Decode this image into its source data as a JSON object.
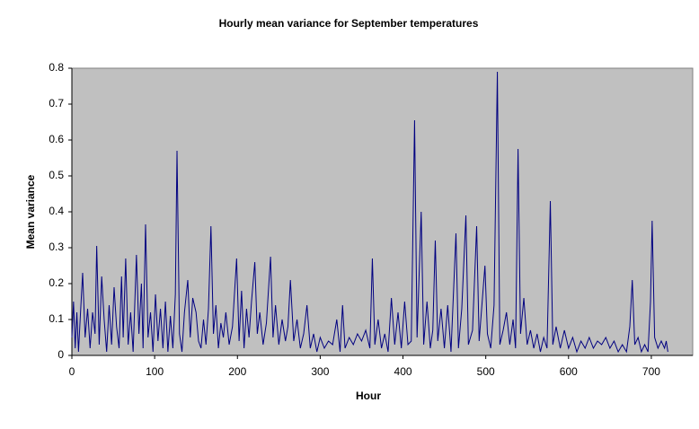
{
  "chart_data": {
    "type": "line",
    "title": "Hourly mean variance for September temperatures",
    "x_label": "Hour",
    "y_label": "Mean variance",
    "xlim": [
      0,
      750
    ],
    "xticks": [
      0,
      100,
      200,
      300,
      400,
      500,
      600,
      700
    ],
    "ylim": [
      0,
      0.8
    ],
    "yticks": [
      0,
      0.1,
      0.2,
      0.3,
      0.4,
      0.5,
      0.6,
      0.7,
      0.8
    ],
    "grid": false,
    "background": "#c0c0c0",
    "series": [
      {
        "name": "Mean variance",
        "color": "#000080",
        "x": [
          0,
          2,
          4,
          6,
          8,
          10,
          13,
          16,
          19,
          22,
          25,
          28,
          30,
          33,
          36,
          39,
          42,
          45,
          48,
          51,
          54,
          57,
          60,
          62,
          65,
          68,
          71,
          74,
          78,
          81,
          84,
          86,
          89,
          92,
          95,
          98,
          101,
          104,
          107,
          110,
          113,
          116,
          119,
          122,
          125,
          127,
          130,
          133,
          136,
          140,
          143,
          146,
          150,
          153,
          156,
          159,
          162,
          165,
          168,
          171,
          174,
          177,
          180,
          183,
          186,
          190,
          194,
          199,
          202,
          205,
          208,
          211,
          214,
          217,
          221,
          224,
          227,
          231,
          235,
          240,
          243,
          246,
          250,
          254,
          258,
          261,
          264,
          268,
          272,
          276,
          280,
          284,
          288,
          292,
          296,
          300,
          305,
          310,
          315,
          320,
          324,
          327,
          330,
          335,
          340,
          345,
          350,
          355,
          360,
          363,
          366,
          370,
          374,
          378,
          382,
          386,
          390,
          394,
          398,
          402,
          406,
          410,
          414,
          417,
          422,
          425,
          429,
          433,
          436,
          439,
          442,
          446,
          450,
          454,
          458,
          464,
          467,
          471,
          476,
          479,
          484,
          489,
          492,
          496,
          499,
          502,
          506,
          510,
          514,
          517,
          521,
          525,
          529,
          533,
          536,
          539,
          542,
          546,
          550,
          554,
          558,
          562,
          566,
          570,
          574,
          578,
          581,
          585,
          590,
          595,
          600,
          605,
          610,
          615,
          620,
          625,
          630,
          635,
          640,
          645,
          650,
          655,
          660,
          665,
          670,
          674,
          677,
          680,
          684,
          688,
          692,
          696,
          699,
          701,
          704,
          708,
          712,
          716,
          718,
          720
        ],
        "values": [
          0.05,
          0.15,
          0.02,
          0.12,
          0.01,
          0.1,
          0.23,
          0.05,
          0.13,
          0.02,
          0.12,
          0.06,
          0.305,
          0.03,
          0.22,
          0.1,
          0.01,
          0.14,
          0.03,
          0.19,
          0.08,
          0.02,
          0.22,
          0.05,
          0.27,
          0.03,
          0.12,
          0.01,
          0.28,
          0.06,
          0.2,
          0.02,
          0.365,
          0.05,
          0.12,
          0.01,
          0.17,
          0.04,
          0.13,
          0.02,
          0.15,
          0.01,
          0.11,
          0.02,
          0.17,
          0.57,
          0.06,
          0.01,
          0.12,
          0.21,
          0.05,
          0.16,
          0.12,
          0.04,
          0.02,
          0.1,
          0.03,
          0.13,
          0.36,
          0.06,
          0.14,
          0.02,
          0.09,
          0.05,
          0.12,
          0.03,
          0.08,
          0.27,
          0.04,
          0.18,
          0.02,
          0.13,
          0.05,
          0.15,
          0.26,
          0.06,
          0.12,
          0.03,
          0.09,
          0.275,
          0.05,
          0.14,
          0.03,
          0.1,
          0.04,
          0.08,
          0.21,
          0.04,
          0.1,
          0.02,
          0.06,
          0.14,
          0.02,
          0.06,
          0.01,
          0.05,
          0.02,
          0.04,
          0.03,
          0.1,
          0.01,
          0.14,
          0.02,
          0.05,
          0.03,
          0.06,
          0.04,
          0.07,
          0.02,
          0.27,
          0.03,
          0.1,
          0.02,
          0.06,
          0.01,
          0.16,
          0.03,
          0.12,
          0.02,
          0.15,
          0.03,
          0.04,
          0.655,
          0.05,
          0.4,
          0.03,
          0.15,
          0.02,
          0.07,
          0.32,
          0.04,
          0.13,
          0.02,
          0.14,
          0.01,
          0.34,
          0.02,
          0.13,
          0.39,
          0.03,
          0.07,
          0.36,
          0.04,
          0.16,
          0.25,
          0.06,
          0.02,
          0.14,
          0.79,
          0.03,
          0.07,
          0.12,
          0.03,
          0.1,
          0.02,
          0.575,
          0.06,
          0.16,
          0.03,
          0.07,
          0.02,
          0.06,
          0.01,
          0.05,
          0.02,
          0.43,
          0.03,
          0.08,
          0.02,
          0.07,
          0.02,
          0.05,
          0.01,
          0.04,
          0.02,
          0.05,
          0.02,
          0.04,
          0.03,
          0.05,
          0.02,
          0.04,
          0.01,
          0.03,
          0.01,
          0.08,
          0.21,
          0.03,
          0.05,
          0.01,
          0.03,
          0.01,
          0.15,
          0.375,
          0.05,
          0.02,
          0.04,
          0.02,
          0.04,
          0.01
        ]
      }
    ]
  }
}
